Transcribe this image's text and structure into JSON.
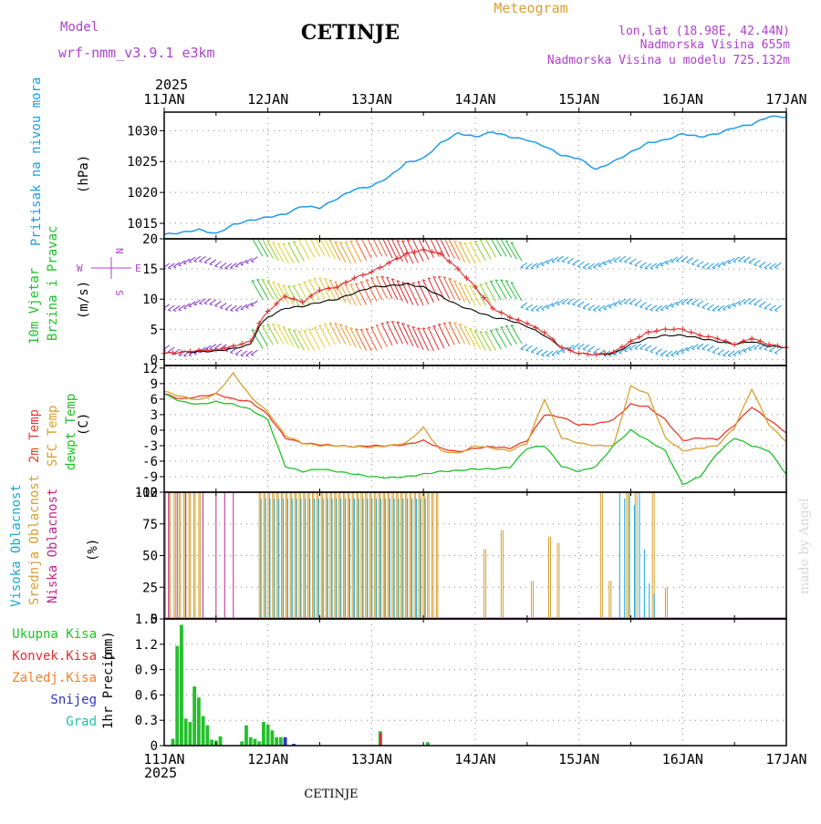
{
  "header": {
    "model_label": "Model",
    "model_name": "wrf-nmm_v3.9.1 e3km",
    "title": "CETINJE",
    "product": "Meteogram",
    "lonlat": "lon,lat (18.98E, 42.44N)",
    "altitude": "Nadmorska Visina 655m",
    "model_altitude": "Nadmorska Visina u modelu 725.132m",
    "year": "2025",
    "footer_station": "CETINJE",
    "watermark": "made by Angel"
  },
  "colors": {
    "pressure": "#1e9be6",
    "wind_speed": "#e03030",
    "wind_mean": "#000000",
    "t2m": "#e83c2a",
    "tsfc": "#d8a030",
    "dewpt": "#22c02a",
    "cloud_high": "#18a8d8",
    "cloud_mid": "#d8a030",
    "cloud_low": "#c02890",
    "precip_total": "#22c02a",
    "precip_conv": "#e03030",
    "precip_frozen": "#f08030",
    "precip_snow": "#3030d0",
    "precip_hail": "#20c0b0",
    "purple": "#b040d0",
    "grid": "#888888"
  },
  "chart_data": [
    {
      "id": "pressure",
      "type": "line",
      "title": "Pritisak na nivou mora",
      "ylabel": "Pritisak na nivou mora",
      "units": "(hPa)",
      "x_range": [
        0,
        144
      ],
      "ylim": [
        1012.5,
        1033
      ],
      "yticks": [
        1015,
        1020,
        1025,
        1030
      ],
      "x": [
        0,
        4,
        8,
        12,
        16,
        20,
        24,
        28,
        32,
        36,
        40,
        44,
        48,
        52,
        56,
        60,
        64,
        68,
        72,
        76,
        80,
        84,
        88,
        92,
        96,
        100,
        104,
        108,
        112,
        116,
        120,
        124,
        128,
        132,
        136,
        140,
        144
      ],
      "values": [
        1013.2,
        1013.5,
        1014.0,
        1013.3,
        1014.8,
        1015.5,
        1016.0,
        1016.5,
        1017.8,
        1017.5,
        1019.0,
        1020.5,
        1021.0,
        1022.5,
        1024.8,
        1025.5,
        1028.0,
        1029.6,
        1029.0,
        1029.8,
        1029.0,
        1028.5,
        1027.5,
        1026.0,
        1025.5,
        1023.7,
        1025.0,
        1026.5,
        1028.0,
        1028.5,
        1029.5,
        1029.0,
        1029.5,
        1030.5,
        1031.0,
        1032.3,
        1032.2
      ]
    },
    {
      "id": "wind",
      "type": "line",
      "title": "10m Vjetar Brzina i Pravac",
      "ylabel_lines": [
        "10m Vjetar",
        "Brzina i Pravac"
      ],
      "units": "(m/s)",
      "x_range": [
        0,
        144
      ],
      "ylim": [
        -1,
        20
      ],
      "yticks": [
        0,
        5,
        10,
        15,
        20
      ],
      "compass": [
        "N",
        "W",
        "E",
        "S"
      ],
      "direction_rows": [
        2,
        9.5,
        16.5
      ],
      "x": [
        0,
        4,
        8,
        12,
        16,
        20,
        22,
        24,
        28,
        32,
        36,
        40,
        44,
        48,
        52,
        56,
        60,
        64,
        68,
        72,
        76,
        80,
        84,
        88,
        92,
        96,
        100,
        104,
        108,
        112,
        116,
        120,
        124,
        128,
        132,
        136,
        140,
        144
      ],
      "series": [
        {
          "name": "wind speed",
          "values": [
            1.0,
            1.2,
            1.5,
            1.6,
            2.2,
            3.0,
            6.0,
            8.0,
            10.5,
            9.5,
            11.5,
            12.0,
            13.5,
            14.5,
            16.0,
            17.5,
            18.2,
            17.5,
            15.0,
            12.0,
            8.5,
            7.0,
            6.0,
            4.5,
            2.0,
            1.0,
            0.8,
            1.2,
            3.0,
            4.5,
            5.0,
            5.0,
            4.0,
            3.5,
            2.5,
            3.5,
            2.5,
            2.0
          ]
        },
        {
          "name": "mean speed",
          "values": [
            1.0,
            1.2,
            1.3,
            1.4,
            1.8,
            2.5,
            5.5,
            7.0,
            8.5,
            8.8,
            9.5,
            10.0,
            11.0,
            12.0,
            12.2,
            12.5,
            12.0,
            10.5,
            9.0,
            8.0,
            7.0,
            6.5,
            5.5,
            4.0,
            2.0,
            1.0,
            0.8,
            1.0,
            2.5,
            3.5,
            4.0,
            4.0,
            3.5,
            3.0,
            2.5,
            3.0,
            2.2,
            2.0
          ]
        }
      ]
    },
    {
      "id": "temperature",
      "type": "line",
      "title": "2m Temp / SFC Temp / dewpt Temp",
      "ylabel_lines": [
        "2m Temp",
        "SFC Temp",
        "dewpt Temp"
      ],
      "units": "(C)",
      "x_range": [
        0,
        144
      ],
      "ylim": [
        -12,
        12.5
      ],
      "yticks": [
        -12,
        -9,
        -6,
        -3,
        0,
        3,
        6,
        9,
        12
      ],
      "x": [
        0,
        4,
        8,
        12,
        16,
        20,
        24,
        28,
        32,
        36,
        40,
        44,
        48,
        52,
        56,
        60,
        64,
        68,
        72,
        76,
        80,
        84,
        88,
        92,
        96,
        100,
        104,
        108,
        112,
        116,
        120,
        124,
        128,
        132,
        136,
        140,
        144
      ],
      "series": [
        {
          "name": "2m Temp",
          "values": [
            7.0,
            6.0,
            6.5,
            7.0,
            6.0,
            5.5,
            3.0,
            -1.5,
            -2.5,
            -2.8,
            -3.0,
            -3.2,
            -3.0,
            -3.0,
            -2.8,
            -2.0,
            -3.5,
            -4.2,
            -3.5,
            -3.2,
            -3.5,
            -2.0,
            3.0,
            2.5,
            1.0,
            1.2,
            2.0,
            5.0,
            4.5,
            2.0,
            -2.0,
            -1.5,
            -1.8,
            1.0,
            4.5,
            2.0,
            -0.5
          ]
        },
        {
          "name": "SFC Temp",
          "values": [
            7.5,
            6.5,
            5.8,
            7.0,
            11.0,
            6.5,
            3.5,
            -1.0,
            -2.5,
            -3.0,
            -3.0,
            -3.2,
            -3.3,
            -3.0,
            -2.5,
            0.5,
            -4.0,
            -4.5,
            -3.0,
            -3.5,
            -4.0,
            -2.5,
            6.0,
            -1.5,
            -2.5,
            -3.0,
            -3.0,
            8.5,
            7.0,
            -1.5,
            -4.0,
            -3.5,
            -3.0,
            0.5,
            8.0,
            1.0,
            -2.2
          ]
        },
        {
          "name": "dewpt Temp",
          "values": [
            7.0,
            5.5,
            5.0,
            5.5,
            5.0,
            4.0,
            2.0,
            -7.0,
            -8.0,
            -7.5,
            -8.0,
            -8.5,
            -9.0,
            -9.2,
            -9.0,
            -8.5,
            -8.0,
            -7.8,
            -7.5,
            -7.5,
            -7.2,
            -3.5,
            -3.0,
            -7.0,
            -8.0,
            -7.0,
            -3.0,
            0.0,
            -2.0,
            -4.0,
            -10.5,
            -9.0,
            -4.5,
            -1.5,
            -3.0,
            -4.0,
            -8.5
          ]
        }
      ]
    },
    {
      "id": "clouds",
      "type": "bar",
      "title": "Visoka / Srednja / Niska Oblacnost",
      "ylabel_lines": [
        "Visoka Oblacnost",
        "Srednja Oblacnost",
        "Niska Oblacnost"
      ],
      "units": "(%)",
      "x_range": [
        0,
        144
      ],
      "ylim": [
        0,
        100
      ],
      "yticks": [
        0,
        25,
        50,
        75,
        100
      ],
      "segments": [
        {
          "layer": "mid",
          "hours": [
            0,
            8
          ],
          "values": [
            100,
            100,
            100,
            100,
            100,
            100,
            100,
            100
          ]
        },
        {
          "layer": "low",
          "hours": [
            1,
            3,
            5,
            9,
            12,
            14,
            16
          ],
          "values": [
            100,
            100,
            100,
            100,
            100,
            100,
            100
          ]
        },
        {
          "layer": "mid",
          "hours": [
            22,
            63
          ],
          "values": [
            100,
            100,
            100,
            100,
            100,
            100,
            100,
            100,
            100,
            100,
            100,
            100,
            100,
            100,
            100,
            100,
            100,
            100,
            100,
            100,
            100,
            100,
            100,
            100,
            100,
            100,
            100,
            100,
            100,
            100,
            100,
            100,
            100,
            100,
            100,
            100,
            100,
            100,
            100,
            100,
            100
          ]
        },
        {
          "layer": "high",
          "hours": [
            22,
            60
          ],
          "values": [
            95,
            95,
            95,
            95,
            95,
            95,
            95,
            95,
            95,
            95,
            95,
            95,
            95,
            95,
            95,
            95,
            95,
            95,
            95,
            95,
            95,
            95,
            95,
            95,
            95,
            95,
            95,
            95,
            95,
            95,
            95,
            95,
            95,
            95,
            95,
            95,
            95,
            95
          ]
        },
        {
          "layer": "mid",
          "hours": [
            74,
            78,
            85,
            89,
            91,
            101,
            103,
            107,
            109,
            113,
            116
          ],
          "values": [
            55,
            70,
            30,
            65,
            60,
            100,
            30,
            100,
            100,
            100,
            25
          ]
        },
        {
          "layer": "high",
          "hours": [
            105,
            113
          ],
          "values": [
            100,
            95,
            100,
            90,
            100,
            55,
            28,
            20
          ]
        }
      ]
    },
    {
      "id": "precip",
      "type": "bar",
      "title": "1hr Precip",
      "ylabel": "1hr Precip",
      "units": "(mm)",
      "x_range": [
        0,
        144
      ],
      "ylim": [
        0,
        1.5
      ],
      "yticks": [
        0,
        0.3,
        0.6,
        0.9,
        1.2,
        1.5
      ],
      "legend": [
        "Ukupna Kisa",
        "Konvek.Kisa",
        "Zaledj.Kisa",
        "Snijeg",
        "Grad"
      ],
      "hours": [
        2,
        3,
        4,
        5,
        6,
        7,
        8,
        9,
        10,
        11,
        12,
        13,
        18,
        19,
        20,
        21,
        22,
        23,
        24,
        25,
        26,
        27,
        28,
        30,
        50,
        61
      ],
      "total": [
        0.08,
        1.18,
        1.43,
        0.32,
        0.28,
        0.7,
        0.57,
        0.35,
        0.24,
        0.07,
        0.06,
        0.11,
        0.05,
        0.24,
        0.1,
        0.08,
        0.05,
        0.28,
        0.25,
        0.18,
        0.1,
        0.1,
        0.04,
        0.02,
        0.17,
        0.04
      ],
      "convective": [
        0,
        0,
        0,
        0,
        0,
        0,
        0,
        0,
        0,
        0,
        0,
        0,
        0,
        0,
        0,
        0,
        0,
        0,
        0,
        0,
        0,
        0,
        0,
        0,
        0.15,
        0
      ],
      "snow": [
        0,
        0,
        0,
        0,
        0,
        0,
        0,
        0,
        0,
        0,
        0,
        0,
        0,
        0,
        0,
        0,
        0,
        0,
        0,
        0,
        0,
        0,
        0.1,
        0.02,
        0,
        0
      ]
    }
  ],
  "x_axis": {
    "ticks": [
      "11JAN",
      "12JAN",
      "13JAN",
      "14JAN",
      "15JAN",
      "16JAN",
      "17JAN"
    ],
    "tick_hours": [
      0,
      24,
      48,
      72,
      96,
      120,
      144
    ]
  }
}
